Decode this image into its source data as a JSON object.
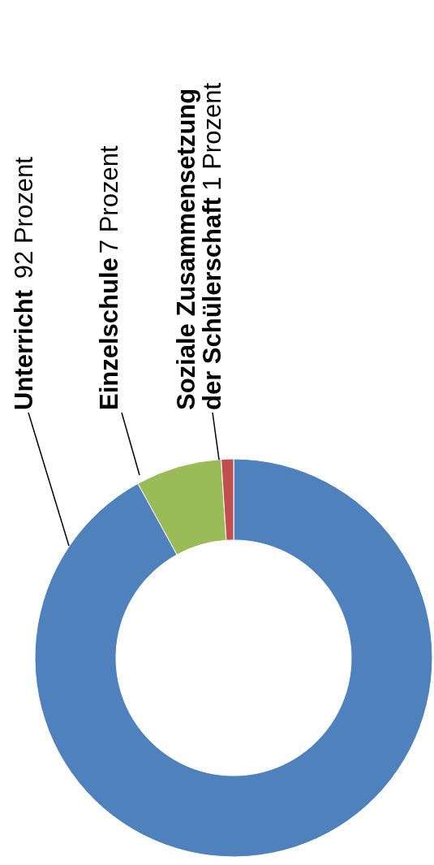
{
  "chart_data": {
    "type": "donut",
    "categories": [
      "Unterricht",
      "Einzelschule",
      "Soziale Zusammensetzung der Schülerschaft"
    ],
    "values": [
      92,
      7,
      1
    ],
    "colors": [
      "#4f81bd",
      "#9bbb59",
      "#c0504d"
    ],
    "value_labels": [
      "92 Prozent",
      "7 Prozent",
      "1 Prozent"
    ]
  }
}
